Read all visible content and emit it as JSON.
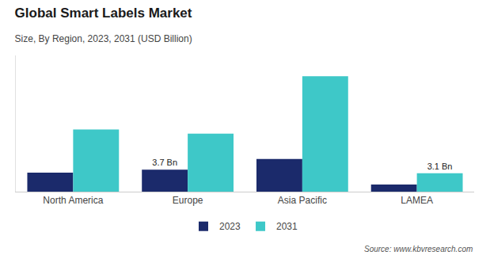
{
  "chart_data": {
    "type": "bar",
    "title": "Global Smart Labels Market",
    "subtitle": "Size, By Region, 2023, 2031 (USD Billion)",
    "source": "Source: www.kbvresearch.com",
    "categories": [
      "North America",
      "Europe",
      "Asia Pacific",
      "LAMEA"
    ],
    "series": [
      {
        "name": "2023",
        "color": "#1b2a6b",
        "values": [
          3.2,
          3.7,
          5.5,
          1.2
        ]
      },
      {
        "name": "2031",
        "color": "#3ec8c8",
        "values": [
          10.5,
          9.8,
          19.5,
          3.1
        ]
      }
    ],
    "annotations": [
      {
        "category": "Europe",
        "series": "2023",
        "text": "3.7 Bn"
      },
      {
        "category": "LAMEA",
        "series": "2031",
        "text": "3.1 Bn"
      }
    ],
    "ylim": [
      0,
      23
    ],
    "grid": false,
    "legend": "bottom",
    "tick_labels": "x"
  }
}
